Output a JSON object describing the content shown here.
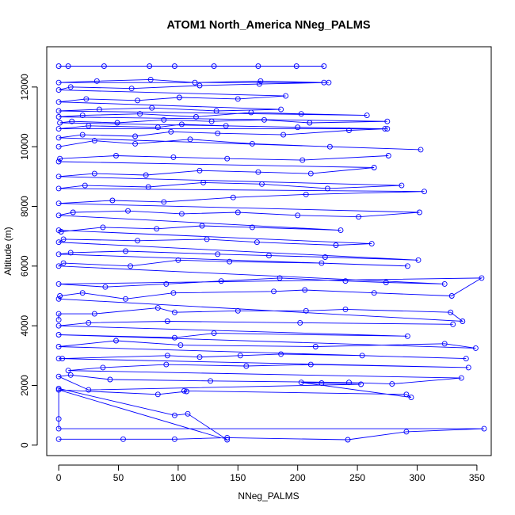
{
  "chart_data": {
    "type": "line",
    "title": "ATOM1 North_America NNeg_PALMS",
    "xlabel": "NNeg_PALMS",
    "ylabel": "Altitude (m)",
    "xlim": [
      -10,
      362
    ],
    "ylim": [
      -350,
      13350
    ],
    "x_ticks": [
      0,
      50,
      100,
      150,
      200,
      250,
      300,
      350
    ],
    "y_ticks": [
      0,
      2000,
      4000,
      6000,
      8000,
      10000,
      12000
    ],
    "grid": false,
    "legend": "none",
    "marker": "open-circle",
    "series_color": "#0000ff",
    "series": [
      {
        "x": [
          0,
          54,
          97,
          141,
          242,
          291,
          356,
          0,
          0,
          0,
          97,
          108,
          141,
          0,
          83,
          107,
          105,
          291,
          295,
          203,
          220,
          253,
          25,
          0,
          10,
          43,
          127,
          243,
          279,
          337,
          8,
          37,
          90,
          157,
          211,
          343,
          0,
          3,
          91,
          118,
          152,
          186,
          254,
          341,
          0,
          48,
          102,
          215,
          323,
          349,
          0,
          97,
          130,
          292,
          0,
          25,
          91,
          202,
          330
        ],
        "y": [
          200,
          200,
          200,
          250,
          180,
          450,
          550,
          550,
          880,
          1900,
          1000,
          1050,
          180,
          1850,
          1700,
          1800,
          1820,
          1700,
          1600,
          2100,
          2080,
          2040,
          1850,
          2300,
          2350,
          2200,
          2150,
          2100,
          2050,
          2250,
          2500,
          2600,
          2700,
          2650,
          2700,
          2600,
          2900,
          2900,
          3000,
          2950,
          3000,
          3050,
          3000,
          2900,
          3300,
          3500,
          3350,
          3300,
          3400,
          3250,
          3700,
          3600,
          3750,
          3650,
          4000,
          4100,
          4150,
          4100,
          4050
        ]
      },
      {
        "x": [
          0,
          0,
          30,
          83,
          97,
          150,
          207,
          240,
          328,
          338,
          0,
          1,
          20,
          56,
          96,
          180,
          206,
          264,
          329,
          354,
          0,
          39,
          90,
          136,
          185,
          240,
          274,
          323,
          0,
          4,
          60,
          100,
          143,
          220,
          292,
          0,
          10,
          56,
          133,
          176,
          223,
          301,
          0,
          4,
          66,
          124,
          166,
          232,
          262,
          0,
          2,
          37,
          82,
          120,
          162,
          236,
          0,
          12,
          58,
          103,
          150,
          200,
          251,
          302,
          0,
          45,
          88,
          146,
          207,
          306,
          0,
          22,
          75,
          121,
          170,
          225,
          287,
          0,
          30,
          73,
          118,
          167,
          211,
          264,
          0,
          1,
          48,
          96,
          141,
          204,
          276
        ],
        "y": [
          4200,
          4400,
          4400,
          4600,
          4450,
          4500,
          4500,
          4550,
          4450,
          4150,
          4900,
          5000,
          5100,
          4900,
          5100,
          5150,
          5200,
          5100,
          5000,
          5600,
          5400,
          5300,
          5400,
          5500,
          5600,
          5500,
          5450,
          5400,
          6000,
          6100,
          6000,
          6200,
          6150,
          6100,
          6000,
          6400,
          6450,
          6500,
          6400,
          6350,
          6300,
          6200,
          6800,
          6900,
          6850,
          6900,
          6800,
          6700,
          6750,
          7200,
          7150,
          7300,
          7250,
          7350,
          7300,
          7200,
          7700,
          7800,
          7850,
          7750,
          7800,
          7700,
          7650,
          7800,
          8100,
          8200,
          8150,
          8300,
          8400,
          8500,
          8600,
          8700,
          8650,
          8800,
          8750,
          8600,
          8700,
          9000,
          9100,
          9050,
          9200,
          9150,
          9100,
          9300,
          9500,
          9600,
          9700,
          9650,
          9600,
          9550,
          9700
        ]
      },
      {
        "x": [
          0,
          30,
          64,
          110,
          162,
          227,
          303,
          0,
          20,
          64,
          94,
          133,
          188,
          243,
          275,
          0,
          25,
          83,
          103,
          140,
          200,
          273,
          1,
          11,
          49,
          88,
          128,
          172,
          210,
          275,
          0,
          20,
          68,
          115,
          161,
          203,
          258,
          0,
          34,
          78,
          132,
          186,
          0,
          23,
          66,
          101,
          150,
          190,
          0,
          10,
          61,
          118,
          168,
          226,
          0,
          32,
          77,
          114,
          169,
          222
        ],
        "y": [
          10000,
          10200,
          10100,
          10250,
          10100,
          10000,
          9900,
          10300,
          10400,
          10350,
          10500,
          10450,
          10400,
          10550,
          10600,
          10600,
          10700,
          10650,
          10750,
          10700,
          10650,
          10600,
          10800,
          10850,
          10800,
          10900,
          10850,
          10900,
          10800,
          10850,
          11000,
          11050,
          11100,
          11000,
          11150,
          11100,
          11050,
          11200,
          11250,
          11300,
          11200,
          11250,
          11500,
          11600,
          11550,
          11650,
          11600,
          11700,
          11900,
          12000,
          11950,
          12050,
          12100,
          12150,
          12150,
          12200,
          12250,
          12150,
          12200,
          12150
        ]
      },
      {
        "x": [
          0,
          8,
          38,
          76,
          97,
          130,
          167,
          199,
          222
        ],
        "y": [
          12700,
          12700,
          12700,
          12700,
          12700,
          12700,
          12700,
          12700,
          12700
        ]
      }
    ]
  }
}
